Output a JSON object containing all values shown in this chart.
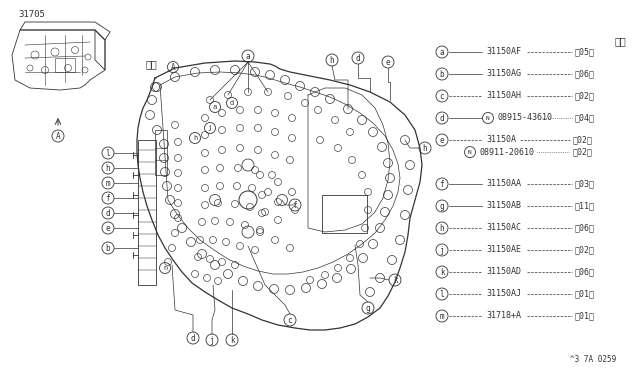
{
  "background_color": "#ffffff",
  "part_number_label": "31705",
  "view_label": "矢視",
  "doc_number": "^3 7A 0259",
  "quantity_label": "数量",
  "legend_entries": [
    {
      "key": "a",
      "part": "31150AF",
      "qty": "々05〆",
      "line_style": "solid"
    },
    {
      "key": "b",
      "part": "31150AG",
      "qty": "々06〆",
      "line_style": "solid"
    },
    {
      "key": "c",
      "part": "31150AH",
      "qty": "々02〆",
      "line_style": "dashed"
    },
    {
      "key": "d",
      "part": "08915-43610",
      "qty": "々04〆",
      "line_style": "solid",
      "N_prefix": true
    },
    {
      "key": "e",
      "part": "31150A",
      "qty": "々02〆",
      "line_style": "dashed",
      "extra_part": "08911-20610",
      "extra_qty": "々02〆"
    },
    {
      "key": "f",
      "part": "31150AA",
      "qty": "々03〆",
      "line_style": "solid"
    },
    {
      "key": "g",
      "part": "31150AB",
      "qty": "々11〆",
      "line_style": "solid"
    },
    {
      "key": "h",
      "part": "31150AC",
      "qty": "々06〆",
      "line_style": "dashed"
    },
    {
      "key": "j",
      "part": "31150AE",
      "qty": "々02〆",
      "line_style": "dashed"
    },
    {
      "key": "k",
      "part": "31150AD",
      "qty": "々06〆",
      "line_style": "dashed"
    },
    {
      "key": "l",
      "part": "31150AJ",
      "qty": "々01〆",
      "line_style": "dashed"
    },
    {
      "key": "m",
      "part": "31718+A",
      "qty": "々01〆",
      "line_style": "dashed"
    }
  ]
}
